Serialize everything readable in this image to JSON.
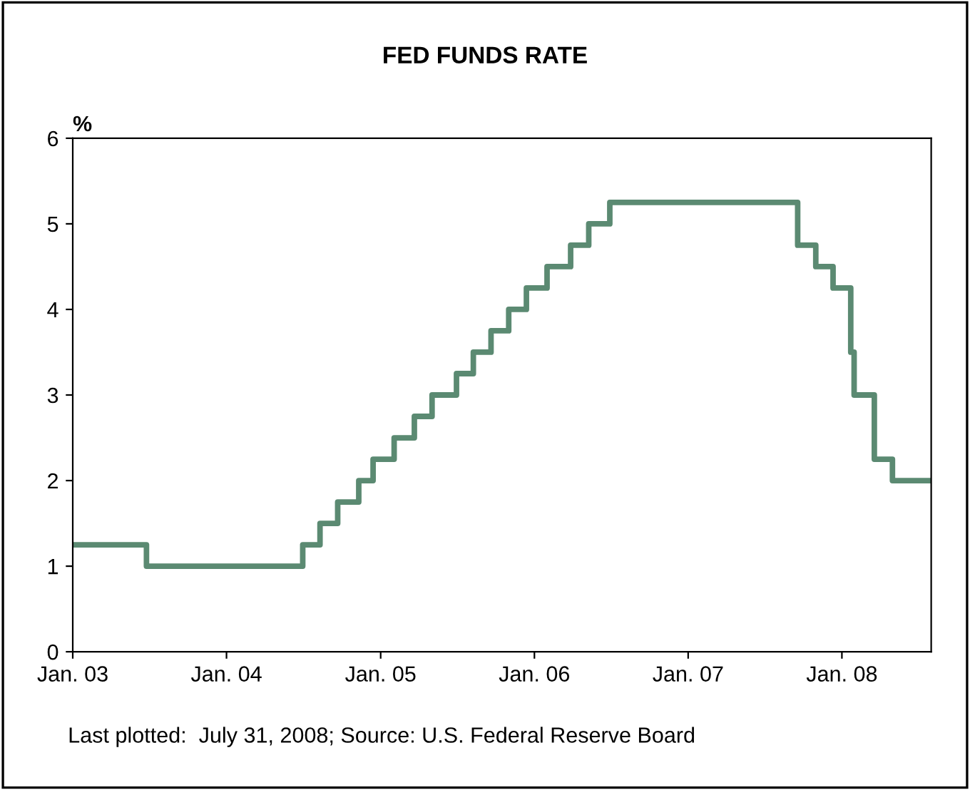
{
  "chart_data": {
    "type": "step",
    "title": "FED FUNDS RATE",
    "ylabel": "%",
    "x": [
      "2003-01-01",
      "2003-06-25",
      "2004-06-30",
      "2004-08-10",
      "2004-09-21",
      "2004-11-10",
      "2004-12-14",
      "2005-02-02",
      "2005-03-22",
      "2005-05-03",
      "2005-06-30",
      "2005-08-09",
      "2005-09-20",
      "2005-11-01",
      "2005-12-13",
      "2006-01-31",
      "2006-03-28",
      "2006-05-10",
      "2006-06-29",
      "2007-09-18",
      "2007-10-31",
      "2007-12-11",
      "2008-01-22",
      "2008-01-30",
      "2008-03-18",
      "2008-04-30",
      "2008-07-31"
    ],
    "series": [
      {
        "color": "#5b8a72",
        "values": [
          1.25,
          1.0,
          1.25,
          1.5,
          1.75,
          2.0,
          2.25,
          2.5,
          2.75,
          3.0,
          3.25,
          3.5,
          3.75,
          4.0,
          4.25,
          4.5,
          4.75,
          5.0,
          5.25,
          4.75,
          4.5,
          4.25,
          3.5,
          3.0,
          2.25,
          2.0,
          2.0
        ]
      }
    ],
    "xlim": [
      "2003-01-01",
      "2008-07-31"
    ],
    "xticks": [
      {
        "value": "2003-01-01",
        "label": "Jan. 03"
      },
      {
        "value": "2004-01-01",
        "label": "Jan. 04"
      },
      {
        "value": "2005-01-01",
        "label": "Jan. 05"
      },
      {
        "value": "2006-01-01",
        "label": "Jan. 06"
      },
      {
        "value": "2007-01-01",
        "label": "Jan. 07"
      },
      {
        "value": "2008-01-01",
        "label": "Jan. 08"
      }
    ],
    "ylim": [
      0,
      6
    ],
    "yticks": [
      0,
      1,
      2,
      3,
      4,
      5,
      6
    ],
    "grid": false,
    "legend": false,
    "line_style": "solid",
    "marker": "none",
    "annotations": [
      "Last plotted:  July 31, 2008; Source: U.S. Federal Reserve Board"
    ]
  }
}
